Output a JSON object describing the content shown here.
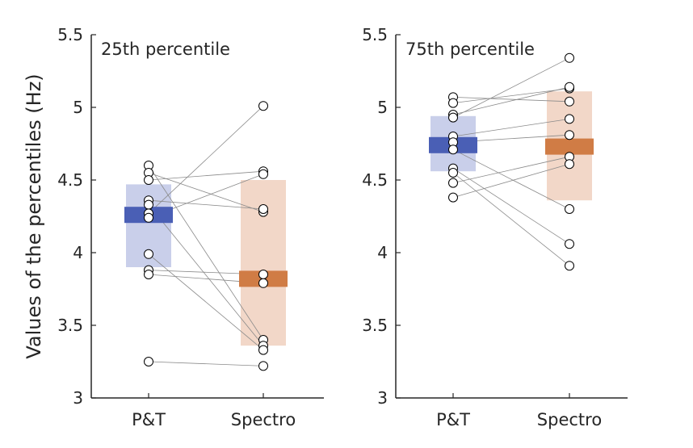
{
  "figure": {
    "ylabel": "Values of the percentiles (Hz)"
  },
  "chart_data": [
    {
      "type": "scatter",
      "title": "25th percentile",
      "categories": [
        "P&T",
        "Spectro"
      ],
      "ylim": [
        3,
        5.5
      ],
      "yticks": [
        "3",
        "3.5",
        "4",
        "4.5",
        "5",
        "5.5"
      ],
      "ylabel": "Values of the percentiles (Hz)",
      "grid": false,
      "colors": {
        "P&T": "#4a5fb5",
        "Spectro": "#d07c45"
      },
      "band_colors": {
        "P&T": "#c9cfea",
        "Spectro": "#f2d7c8"
      },
      "summary": [
        {
          "category": "P&T",
          "center": 4.26,
          "low": 3.9,
          "high": 4.47
        },
        {
          "category": "Spectro",
          "center": 3.82,
          "low": 3.36,
          "high": 4.5
        }
      ],
      "pairs": [
        [
          4.6,
          3.4
        ],
        [
          4.55,
          4.28
        ],
        [
          4.5,
          4.56
        ],
        [
          4.36,
          4.3
        ],
        [
          4.33,
          3.36
        ],
        [
          4.27,
          5.01
        ],
        [
          4.24,
          4.54
        ],
        [
          3.99,
          3.33
        ],
        [
          3.88,
          3.85
        ],
        [
          3.85,
          3.79
        ],
        [
          3.25,
          3.22
        ]
      ]
    },
    {
      "type": "scatter",
      "title": "75th percentile",
      "categories": [
        "P&T",
        "Spectro"
      ],
      "ylim": [
        3,
        5.5
      ],
      "yticks": [
        "3",
        "3.5",
        "4",
        "4.5",
        "5",
        "5.5"
      ],
      "grid": false,
      "colors": {
        "P&T": "#4a5fb5",
        "Spectro": "#d07c45"
      },
      "band_colors": {
        "P&T": "#c9cfea",
        "Spectro": "#f2d7c8"
      },
      "summary": [
        {
          "category": "P&T",
          "center": 4.74,
          "low": 4.56,
          "high": 4.94
        },
        {
          "category": "Spectro",
          "center": 4.73,
          "low": 4.36,
          "high": 5.11
        }
      ],
      "pairs": [
        [
          5.07,
          5.04
        ],
        [
          5.03,
          5.13
        ],
        [
          4.95,
          5.14
        ],
        [
          4.93,
          5.34
        ],
        [
          4.8,
          4.92
        ],
        [
          4.76,
          4.81
        ],
        [
          4.71,
          4.3
        ],
        [
          4.58,
          4.06
        ],
        [
          4.55,
          3.91
        ],
        [
          4.48,
          4.66
        ],
        [
          4.38,
          4.61
        ]
      ]
    }
  ]
}
